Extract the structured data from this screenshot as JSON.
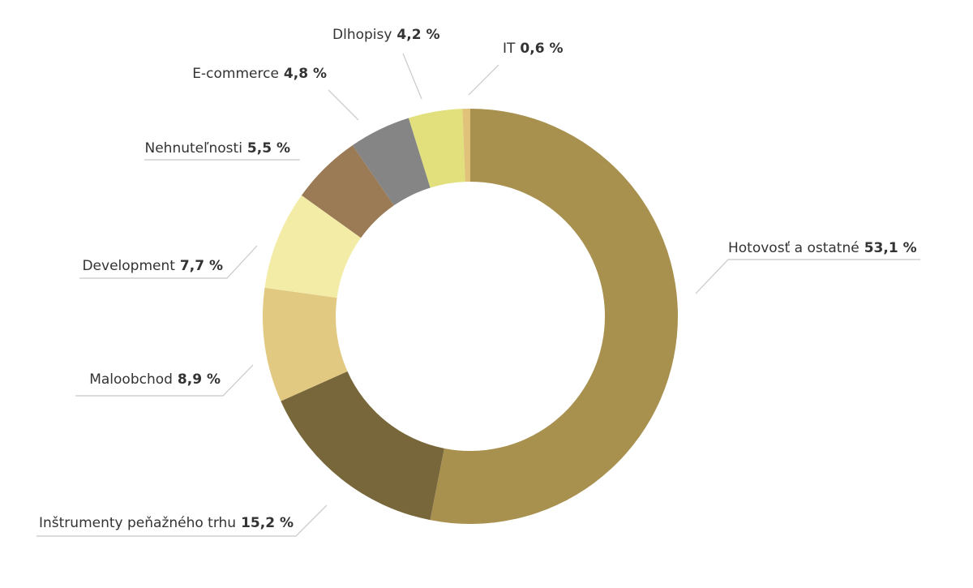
{
  "chart_data": {
    "type": "donut",
    "categories": [
      "Hotovosť a ostatné",
      "Inštrumenty peňažného trhu",
      "Maloobchod",
      "Development",
      "Nehnuteľnosti",
      "E-commerce",
      "Dlhopisy",
      "IT"
    ],
    "values": [
      53.1,
      15.2,
      8.9,
      7.7,
      5.5,
      4.8,
      4.2,
      0.6
    ],
    "value_labels": [
      "53,1 %",
      "15,2 %",
      "8,9 %",
      "7,7 %",
      "5,5 %",
      "4,8 %",
      "4,2 %",
      "0,6 %"
    ],
    "colors": [
      "#a8914f",
      "#78673a",
      "#e1c982",
      "#f3eca6",
      "#9b7b56",
      "#858585",
      "#e2e07c",
      "#e0c27a"
    ]
  }
}
